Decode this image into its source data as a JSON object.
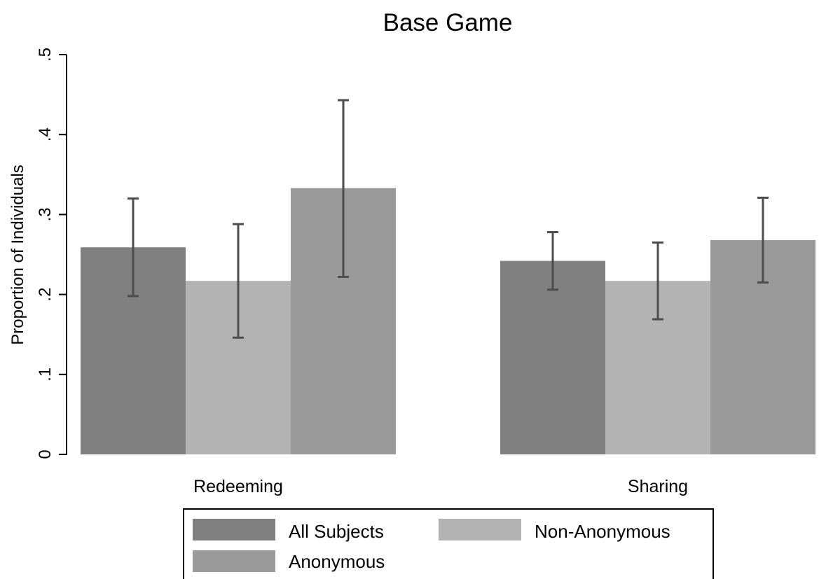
{
  "chart_data": {
    "type": "bar",
    "title": "Base Game",
    "xlabel": "",
    "ylabel": "Proportion of Individuals",
    "ylim": [
      0,
      0.5
    ],
    "yticks": [
      0,
      0.1,
      0.2,
      0.3,
      0.4,
      0.5
    ],
    "ytick_labels": [
      "0",
      ".1",
      ".2",
      ".3",
      ".4",
      ".5"
    ],
    "categories": [
      "Redeeming",
      "Sharing"
    ],
    "series": [
      {
        "name": "All Subjects",
        "color": "#808080",
        "values": [
          0.259,
          0.242
        ],
        "ci_low": [
          0.198,
          0.206
        ],
        "ci_high": [
          0.32,
          0.278
        ]
      },
      {
        "name": "Non-Anonymous",
        "color": "#b3b3b3",
        "values": [
          0.217,
          0.217
        ],
        "ci_low": [
          0.146,
          0.169
        ],
        "ci_high": [
          0.288,
          0.265
        ]
      },
      {
        "name": "Anonymous",
        "color": "#9a9a9a",
        "values": [
          0.333,
          0.268
        ],
        "ci_low": [
          0.222,
          0.215
        ],
        "ci_high": [
          0.443,
          0.321
        ]
      }
    ],
    "error_bar_color": "#4d4d4d",
    "grid": false,
    "legend_position": "bottom"
  }
}
